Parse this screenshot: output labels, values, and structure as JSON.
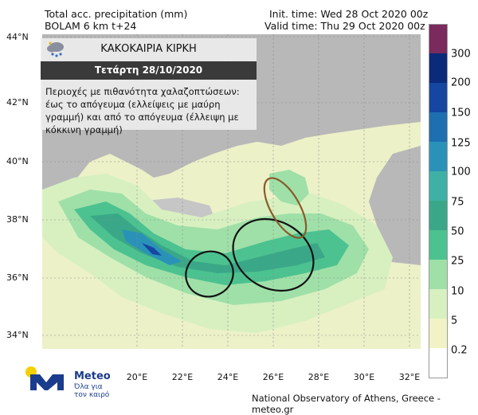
{
  "header": {
    "product": "Total acc. precipitation (mm)",
    "model": "BOLAM 6 km t+24",
    "init": "Init. time: Wed 28 Oct 2020 00z",
    "valid": "Valid time: Thu 29 Oct 2020 00z"
  },
  "overlay": {
    "title": "ΚΑΚΟΚΑΙΡΙΑ ΚΙΡΚΗ",
    "date": "Τετάρτη 28/10/2020",
    "text": "Περιοχές με πιθανότητα χαλαζοπτώσεων: έως το απόγευμα (ελλείψεις με μαύρη γραμμή) και από το απόγευμα (έλλειψη με κόκκινη γραμμή)",
    "icon": "cloud-hail-icon"
  },
  "latitudes": [
    "44°N",
    "42°N",
    "40°N",
    "38°N",
    "36°N",
    "34°N"
  ],
  "longitudes": [
    "20°E",
    "22°E",
    "24°E",
    "26°E",
    "28°E",
    "30°E",
    "32°E"
  ],
  "legend": {
    "labels": [
      "300",
      "200",
      "150",
      "125",
      "100",
      "75",
      "50",
      "25",
      "10",
      "5",
      "0.2"
    ],
    "colors": [
      "#7a2a5c",
      "#0b2a7a",
      "#1546a0",
      "#1d6fb0",
      "#2a92b8",
      "#3fb0a6",
      "#3aa888",
      "#4cc290",
      "#9fe0a8",
      "#d8f0c0",
      "#f1f3c6",
      "#ffffff"
    ]
  },
  "logo": {
    "name": "Meteo",
    "tagline": "Όλα για τον καιρό"
  },
  "footer": "National Observatory of Athens, Greece - meteo.gr"
}
